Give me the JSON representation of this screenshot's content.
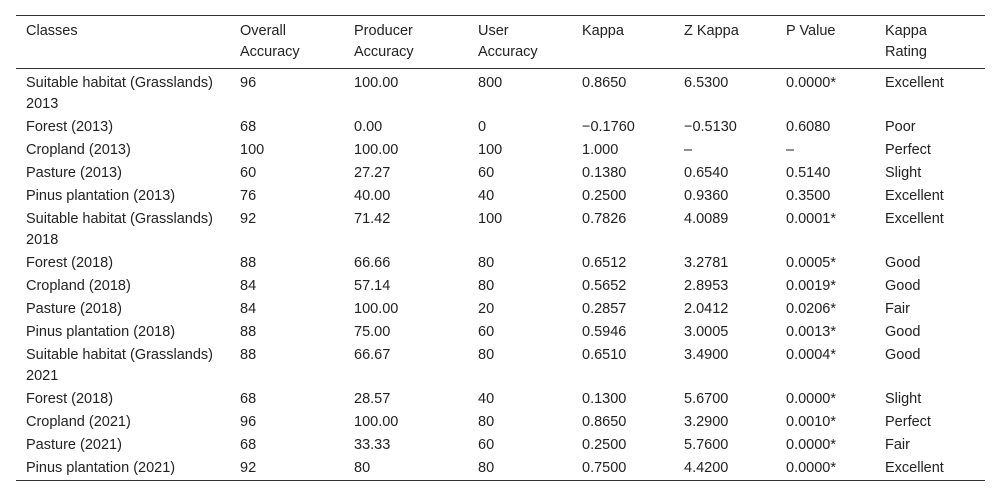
{
  "table": {
    "headers": [
      "Classes",
      "Overall Accuracy",
      "Producer Accuracy",
      "User Accuracy",
      "Kappa",
      "Z Kappa",
      "P Value",
      "Kappa Rating"
    ],
    "rows": [
      [
        "Suitable habitat (Grasslands) 2013",
        "96",
        "100.00",
        "800",
        "0.8650",
        "6.5300",
        "0.0000*",
        "Excellent"
      ],
      [
        "Forest (2013)",
        "68",
        "0.00",
        "0",
        "−0.1760",
        "−0.5130",
        "0.6080",
        "Poor"
      ],
      [
        "Cropland (2013)",
        "100",
        "100.00",
        "100",
        "1.000",
        "–",
        "–",
        "Perfect"
      ],
      [
        "Pasture (2013)",
        "60",
        "27.27",
        "60",
        "0.1380",
        "0.6540",
        "0.5140",
        "Slight"
      ],
      [
        "Pinus plantation (2013)",
        "76",
        "40.00",
        "40",
        "0.2500",
        "0.9360",
        "0.3500",
        "Excellent"
      ],
      [
        "Suitable habitat (Grasslands) 2018",
        "92",
        "71.42",
        "100",
        "0.7826",
        "4.0089",
        "0.0001*",
        "Excellent"
      ],
      [
        "Forest (2018)",
        "88",
        "66.66",
        "80",
        "0.6512",
        "3.2781",
        "0.0005*",
        "Good"
      ],
      [
        "Cropland (2018)",
        "84",
        "57.14",
        "80",
        "0.5652",
        "2.8953",
        "0.0019*",
        "Good"
      ],
      [
        "Pasture (2018)",
        "84",
        "100.00",
        "20",
        "0.2857",
        "2.0412",
        "0.0206*",
        "Fair"
      ],
      [
        "Pinus plantation (2018)",
        "88",
        "75.00",
        "60",
        "0.5946",
        "3.0005",
        "0.0013*",
        "Good"
      ],
      [
        "Suitable habitat (Grasslands) 2021",
        "88",
        "66.67",
        "80",
        "0.6510",
        "3.4900",
        "0.0004*",
        "Good"
      ],
      [
        "Forest (2018)",
        "68",
        "28.57",
        "40",
        "0.1300",
        "5.6700",
        "0.0000*",
        "Slight"
      ],
      [
        "Cropland (2021)",
        "96",
        "100.00",
        "80",
        "0.8650",
        "3.2900",
        "0.0010*",
        "Perfect"
      ],
      [
        "Pasture (2021)",
        "68",
        "33.33",
        "60",
        "0.2500",
        "5.7600",
        "0.0000*",
        "Fair"
      ],
      [
        "Pinus plantation (2021)",
        "92",
        "80",
        "80",
        "0.7500",
        "4.4200",
        "0.0000*",
        "Excellent"
      ]
    ]
  }
}
